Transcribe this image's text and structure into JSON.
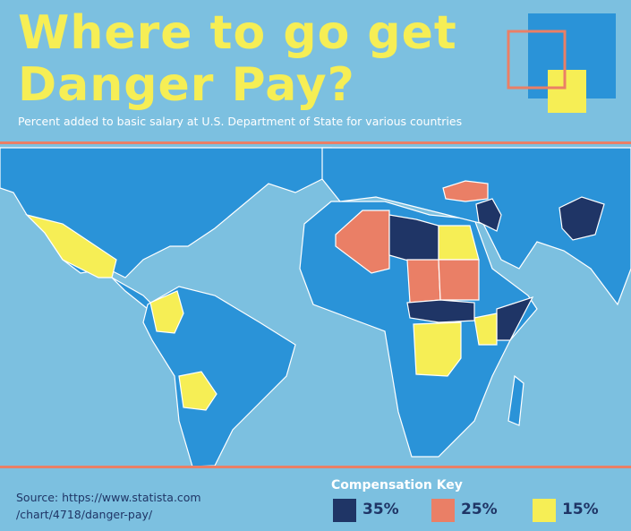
{
  "header": {
    "title": "Where to go get Danger Pay?",
    "subtitle": "Percent added to basic salary at U.S. Department of State for various countries"
  },
  "footer": {
    "source": [
      "Source: https://www.statista.com",
      "/chart/4718/danger-pay/"
    ]
  },
  "key": {
    "title": "Compensation Key",
    "items": [
      {
        "label": "35%",
        "color": "#1f3566"
      },
      {
        "label": "25%",
        "color": "#ea7f66"
      },
      {
        "label": "15%",
        "color": "#f6ee55"
      }
    ]
  }
}
